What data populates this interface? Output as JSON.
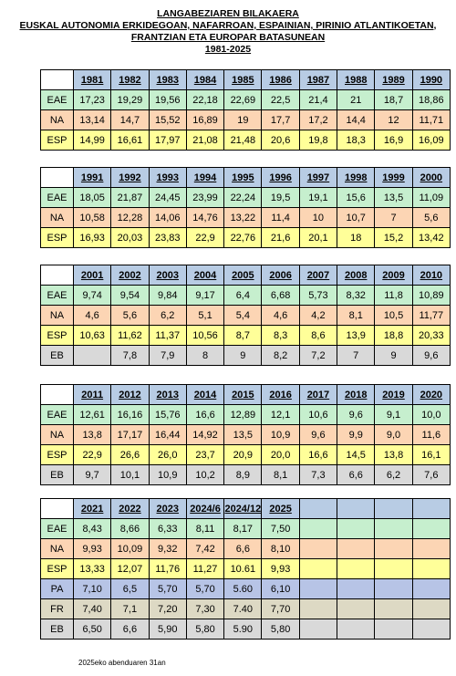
{
  "title": {
    "line1": "LANGABEZIAREN BILAKAERA",
    "line2": "EUSKAL AUTONOMIA ERKIDEGOAN, NAFARROAN, ESPAINIAN, PIRINIO ATLANTIKOETAN,",
    "line3": "FRANTZIAN ETA EUROPAR BATASUNEAN",
    "line4": "1981-2025"
  },
  "blocks": [
    {
      "years": [
        "1981",
        "1982",
        "1983",
        "1984",
        "1985",
        "1986",
        "1987",
        "1988",
        "1989",
        "1990"
      ],
      "rows": [
        {
          "cls": "eae",
          "label": "EAE",
          "values": [
            "17,23",
            "19,29",
            "19,56",
            "22,18",
            "22,69",
            "22,5",
            "21,4",
            "21",
            "18,7",
            "18,86"
          ]
        },
        {
          "cls": "na",
          "label": "NA",
          "values": [
            "13,14",
            "14,7",
            "15,52",
            "16,89",
            "19",
            "17,7",
            "17,2",
            "14,4",
            "12",
            "11,71"
          ]
        },
        {
          "cls": "esp",
          "label": "ESP",
          "values": [
            "14,99",
            "16,61",
            "17,97",
            "21,08",
            "21,48",
            "20,6",
            "19,8",
            "18,3",
            "16,9",
            "16,09"
          ]
        }
      ]
    },
    {
      "years": [
        "1991",
        "1992",
        "1993",
        "1994",
        "1995",
        "1996",
        "1997",
        "1998",
        "1999",
        "2000"
      ],
      "rows": [
        {
          "cls": "eae",
          "label": "EAE",
          "values": [
            "18,05",
            "21,87",
            "24,45",
            "23,99",
            "22,24",
            "19,5",
            "19,1",
            "15,6",
            "13,5",
            "11,09"
          ]
        },
        {
          "cls": "na",
          "label": "NA",
          "values": [
            "10,58",
            "12,28",
            "14,06",
            "14,76",
            "13,22",
            "11,4",
            "10",
            "10,7",
            "7",
            "5,6"
          ]
        },
        {
          "cls": "esp",
          "label": "ESP",
          "values": [
            "16,93",
            "20,03",
            "23,83",
            "22,9",
            "22,76",
            "21,6",
            "20,1",
            "18",
            "15,2",
            "13,42"
          ]
        }
      ]
    },
    {
      "years": [
        "2001",
        "2002",
        "2003",
        "2004",
        "2005",
        "2006",
        "2007",
        "2008",
        "2009",
        "2010"
      ],
      "rows": [
        {
          "cls": "eae",
          "label": "EAE",
          "values": [
            "9,74",
            "9,54",
            "9,84",
            "9,17",
            "6,4",
            "6,68",
            "5,73",
            "8,32",
            "11,8",
            "10,89"
          ]
        },
        {
          "cls": "na",
          "label": "NA",
          "values": [
            "4,6",
            "5,6",
            "6,2",
            "5,1",
            "5,4",
            "4,6",
            "4,2",
            "8,1",
            "10,5",
            "11,77"
          ]
        },
        {
          "cls": "esp",
          "label": "ESP",
          "values": [
            "10,63",
            "11,62",
            "11,37",
            "10,56",
            "8,7",
            "8,3",
            "8,6",
            "13,9",
            "18,8",
            "20,33"
          ]
        },
        {
          "cls": "eb",
          "label": "EB",
          "values": [
            "",
            "7,8",
            "7,9",
            "8",
            "9",
            "8,2",
            "7,2",
            "7",
            "9",
            "9,6"
          ]
        }
      ]
    },
    {
      "years": [
        "2011",
        "2012",
        "2013",
        "2014",
        "2015",
        "2016",
        "2017",
        "2018",
        "2019",
        "2020"
      ],
      "rows": [
        {
          "cls": "eae",
          "label": "EAE",
          "values": [
            "12,61",
            "16,16",
            "15,76",
            "16,6",
            "12,89",
            "12,1",
            "10,6",
            "9,6",
            "9,1",
            "10,0"
          ]
        },
        {
          "cls": "na",
          "label": "NA",
          "values": [
            "13,8",
            "17,17",
            "16,44",
            "14,92",
            "13,5",
            "10,9",
            "9,6",
            "9,9",
            "9,0",
            "11,6"
          ]
        },
        {
          "cls": "esp",
          "label": "ESP",
          "values": [
            "22,9",
            "26,6",
            "26,0",
            "23,7",
            "20,9",
            "20,0",
            "16,6",
            "14,5",
            "13,8",
            "16,1"
          ]
        },
        {
          "cls": "eb",
          "label": "EB",
          "values": [
            "9,7",
            "10,1",
            "10,9",
            "10,2",
            "8,9",
            "8,1",
            "7,3",
            "6,6",
            "6,2",
            "7,6"
          ]
        }
      ]
    },
    {
      "years": [
        "2021",
        "2022",
        "2023",
        "2024/6",
        "2024/12",
        "2025",
        "",
        "",
        "",
        ""
      ],
      "rows": [
        {
          "cls": "eae",
          "label": "EAE",
          "values": [
            "8,43",
            "8,66",
            "6,33",
            "8,11",
            "8,17",
            "7,50",
            "",
            "",
            "",
            ""
          ]
        },
        {
          "cls": "na",
          "label": "NA",
          "values": [
            "9,93",
            "10,09",
            "9,32",
            "7,42",
            "6,6",
            "8,10",
            "",
            "",
            "",
            ""
          ]
        },
        {
          "cls": "esp",
          "label": "ESP",
          "values": [
            "13,33",
            "12,07",
            "11,76",
            "11,27",
            "10.61",
            "9,93",
            "",
            "",
            "",
            ""
          ]
        },
        {
          "cls": "pa",
          "label": "PA",
          "values": [
            "7,10",
            "6,5",
            "5,70",
            "5,70",
            "5.60",
            "6,10",
            "",
            "",
            "",
            ""
          ]
        },
        {
          "cls": "fr",
          "label": "FR",
          "values": [
            "7,40",
            "7,1",
            "7,20",
            "7,30",
            "7.40",
            "7,70",
            "",
            "",
            "",
            ""
          ]
        },
        {
          "cls": "eb",
          "label": "EB",
          "values": [
            "6,50",
            "6,6",
            "5,90",
            "5,80",
            "5.90",
            "5,80",
            "",
            "",
            "",
            ""
          ]
        }
      ]
    }
  ],
  "footer": "2025eko abenduaren 31an"
}
